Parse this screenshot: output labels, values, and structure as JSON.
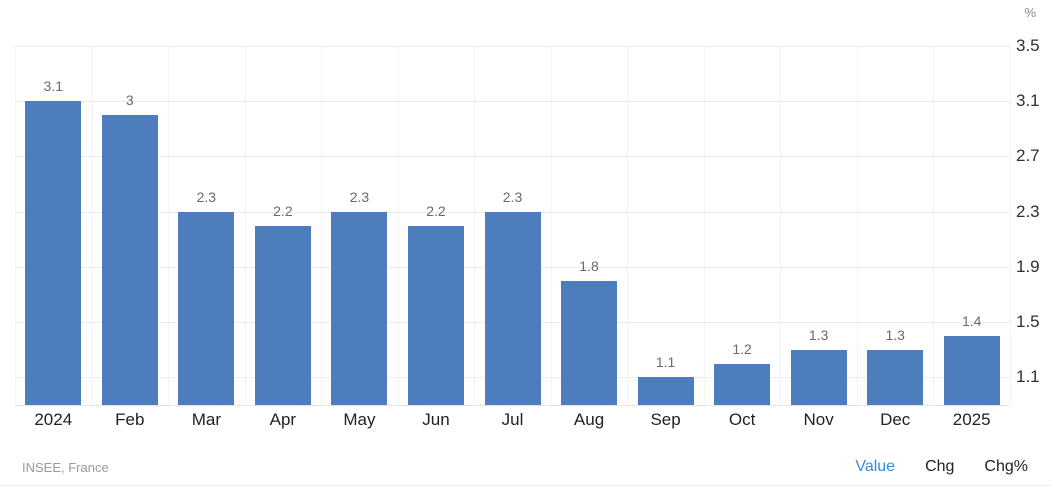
{
  "chart_data": {
    "type": "bar",
    "categories": [
      "2024",
      "Feb",
      "Mar",
      "Apr",
      "May",
      "Jun",
      "Jul",
      "Aug",
      "Sep",
      "Oct",
      "Nov",
      "Dec",
      "2025"
    ],
    "values": [
      3.1,
      3,
      2.3,
      2.2,
      2.3,
      2.2,
      2.3,
      1.8,
      1.1,
      1.2,
      1.3,
      1.3,
      1.4
    ],
    "value_labels": [
      "3.1",
      "3",
      "2.3",
      "2.2",
      "2.3",
      "2.2",
      "2.3",
      "1.8",
      "1.1",
      "1.2",
      "1.3",
      "1.3",
      "1.4"
    ],
    "title": "",
    "xlabel": "",
    "ylabel": "%",
    "ylim": [
      0.9,
      3.5
    ],
    "ytick_labels": [
      "3.5",
      "3.1",
      "2.7",
      "2.3",
      "1.9",
      "1.5",
      "1.1"
    ],
    "grid": true,
    "legend": false,
    "bar_color": "#4e7dbd"
  },
  "footer": {
    "source": "INSEE, France",
    "tabs": [
      {
        "label": "Value",
        "active": true
      },
      {
        "label": "Chg",
        "active": false
      },
      {
        "label": "Chg%",
        "active": false
      }
    ]
  },
  "colors": {
    "bar": "#4e7dbd",
    "accent_link": "#3a8bdc",
    "grid": "#ececec",
    "axis_text": "#2f2f2f",
    "value_label_text": "#6a6a6a",
    "muted_text": "#9a9a9a"
  }
}
